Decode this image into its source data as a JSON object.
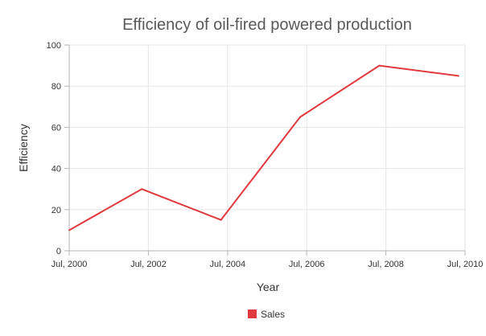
{
  "chart_data": {
    "type": "line",
    "title": "Efficiency of oil-fired powered production",
    "xlabel": "Year",
    "ylabel": "Efficiency",
    "x_ticks": [
      "Jul, 2000",
      "Jul, 2002",
      "Jul, 2004",
      "Jul, 2006",
      "Jul, 2008",
      "Jul, 2010"
    ],
    "y_ticks": [
      "0",
      "20",
      "40",
      "60",
      "80",
      "100"
    ],
    "xlim": [
      "2000-07",
      "2010-07"
    ],
    "ylim": [
      0,
      100
    ],
    "grid": true,
    "legend_position": "bottom",
    "series": [
      {
        "name": "Sales",
        "color": "#e0393e",
        "points": [
          {
            "x": "2000-07",
            "y": 10
          },
          {
            "x": "2002-05",
            "y": 30
          },
          {
            "x": "2004-05",
            "y": 15
          },
          {
            "x": "2006-05",
            "y": 65
          },
          {
            "x": "2008-05",
            "y": 90
          },
          {
            "x": "2010-05",
            "y": 85
          }
        ]
      }
    ]
  }
}
